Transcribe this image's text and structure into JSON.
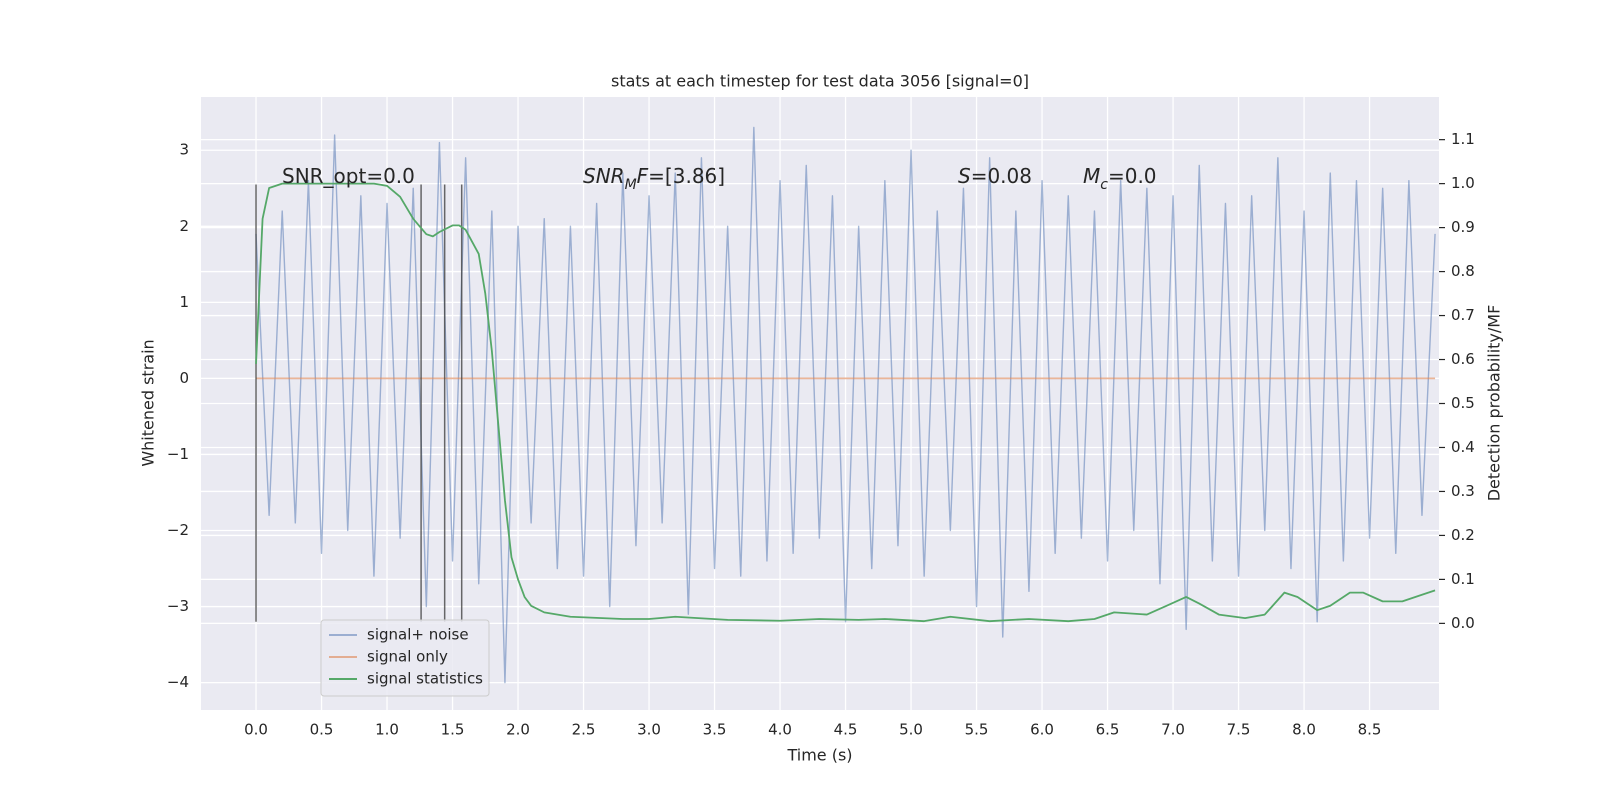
{
  "chart_data": {
    "type": "line",
    "title": "stats at each timestep for test data 3056 [signal=0]",
    "x_label": "Time (s)",
    "y_label": "Whitened strain",
    "y2_label": "Detection probability/MF",
    "xlim": [
      -0.42,
      9.03
    ],
    "ylim": [
      -4.36,
      3.7
    ],
    "y2lim": [
      -0.197,
      1.197
    ],
    "xticks": [
      {
        "value": 0,
        "label": "0.0"
      },
      {
        "value": 0.5,
        "label": "0.5"
      },
      {
        "value": 1,
        "label": "1.0"
      },
      {
        "value": 1.5,
        "label": "1.5"
      },
      {
        "value": 2,
        "label": "2.0"
      },
      {
        "value": 2.5,
        "label": "2.5"
      },
      {
        "value": 3,
        "label": "3.0"
      },
      {
        "value": 3.5,
        "label": "3.5"
      },
      {
        "value": 4,
        "label": "4.0"
      },
      {
        "value": 4.5,
        "label": "4.5"
      },
      {
        "value": 5,
        "label": "5.0"
      },
      {
        "value": 5.5,
        "label": "5.5"
      },
      {
        "value": 6,
        "label": "6.0"
      },
      {
        "value": 6.5,
        "label": "6.5"
      },
      {
        "value": 7,
        "label": "7.0"
      },
      {
        "value": 7.5,
        "label": "7.5"
      },
      {
        "value": 8,
        "label": "8.0"
      },
      {
        "value": 8.5,
        "label": "8.5"
      }
    ],
    "yticks": [
      {
        "value": -4,
        "label": "−4"
      },
      {
        "value": -3,
        "label": "−3"
      },
      {
        "value": -2,
        "label": "−2"
      },
      {
        "value": -1,
        "label": "−1"
      },
      0,
      1,
      2,
      3
    ],
    "y2ticks": [
      {
        "value": 0,
        "label": "0.0"
      },
      {
        "value": 0.1,
        "label": "0.1"
      },
      {
        "value": 0.2,
        "label": "0.2"
      },
      {
        "value": 0.3,
        "label": "0.3"
      },
      {
        "value": 0.4,
        "label": "0.4"
      },
      {
        "value": 0.5,
        "label": "0.5"
      },
      {
        "value": 0.6,
        "label": "0.6"
      },
      {
        "value": 0.7,
        "label": "0.7"
      },
      {
        "value": 0.8,
        "label": "0.8"
      },
      {
        "value": 0.9,
        "label": "0.9"
      },
      {
        "value": 1,
        "label": "1.0"
      },
      {
        "value": 1.1,
        "label": "1.1"
      }
    ],
    "grid": true,
    "legend": "lower left",
    "series": [
      {
        "name": "signal+ noise",
        "color": "#4c72b0",
        "opacity": 0.5,
        "x": [
          0,
          0.1,
          0.2,
          0.3,
          0.4,
          0.5,
          0.6,
          0.7,
          0.8,
          0.9,
          1,
          1.1,
          1.2,
          1.3,
          1.4,
          1.5,
          1.6,
          1.7,
          1.8,
          1.9,
          2,
          2.1,
          2.2,
          2.3,
          2.4,
          2.5,
          2.6,
          2.7,
          2.8,
          2.9,
          3,
          3.1,
          3.2,
          3.3,
          3.4,
          3.5,
          3.6,
          3.7,
          3.8,
          3.9,
          4,
          4.1,
          4.2,
          4.3,
          4.4,
          4.5,
          4.6,
          4.7,
          4.8,
          4.9,
          5,
          5.1,
          5.2,
          5.3,
          5.4,
          5.5,
          5.6,
          5.7,
          5.8,
          5.9,
          6,
          6.1,
          6.2,
          6.3,
          6.4,
          6.5,
          6.6,
          6.7,
          6.8,
          6.9,
          7,
          7.1,
          7.2,
          7.3,
          7.4,
          7.5,
          7.6,
          7.7,
          7.8,
          7.9,
          8,
          8.1,
          8.2,
          8.3,
          8.4,
          8.5,
          8.6,
          8.7,
          8.8,
          8.9,
          9
        ],
        "values": [
          1.9,
          -1.8,
          2.2,
          -1.9,
          2.6,
          -2.3,
          3.2,
          -2.0,
          2.4,
          -2.6,
          2.3,
          -2.1,
          2.5,
          -3.0,
          3.1,
          -2.4,
          2.9,
          -2.7,
          2.2,
          -4.0,
          2.0,
          -1.9,
          2.1,
          -2.5,
          2.0,
          -2.6,
          2.3,
          -3.0,
          2.7,
          -2.2,
          2.4,
          -1.9,
          2.7,
          -3.1,
          2.9,
          -2.5,
          2.0,
          -2.6,
          3.3,
          -2.4,
          2.6,
          -2.3,
          2.8,
          -2.1,
          2.4,
          -3.2,
          2.0,
          -2.5,
          2.6,
          -2.2,
          3.0,
          -2.6,
          2.2,
          -2.0,
          2.5,
          -3.0,
          2.9,
          -3.4,
          2.2,
          -2.8,
          2.6,
          -2.3,
          2.4,
          -2.1,
          2.2,
          -2.4,
          2.6,
          -2.0,
          2.5,
          -2.7,
          2.4,
          -3.3,
          2.8,
          -2.4,
          2.3,
          -2.6,
          2.4,
          -2.0,
          2.9,
          -2.5,
          2.2,
          -3.2,
          2.7,
          -2.4,
          2.6,
          -2.1,
          2.5,
          -2.3,
          2.6,
          -1.8,
          1.9
        ]
      },
      {
        "name": "signal only",
        "color": "#dd8452",
        "opacity": 0.6,
        "x": [
          0,
          9
        ],
        "values": [
          0,
          0
        ]
      },
      {
        "name": "signal statistics",
        "color": "#55a868",
        "opacity": 1,
        "axis": "y2",
        "x": [
          0,
          0.05,
          0.1,
          0.2,
          0.3,
          0.4,
          0.5,
          0.6,
          0.7,
          0.8,
          0.9,
          1.0,
          1.1,
          1.2,
          1.3,
          1.35,
          1.4,
          1.5,
          1.55,
          1.6,
          1.7,
          1.75,
          1.8,
          1.85,
          1.9,
          1.95,
          2.0,
          2.05,
          2.1,
          2.2,
          2.4,
          2.8,
          3.0,
          3.2,
          3.6,
          4.0,
          4.3,
          4.6,
          4.8,
          5.1,
          5.3,
          5.6,
          5.9,
          6.2,
          6.4,
          6.55,
          6.8,
          6.95,
          7.1,
          7.2,
          7.35,
          7.55,
          7.7,
          7.85,
          7.95,
          8.1,
          8.2,
          8.35,
          8.45,
          8.6,
          8.75,
          8.9,
          9.0
        ],
        "values": [
          0.59,
          0.92,
          0.99,
          1.0,
          1.0,
          1.0,
          1.0,
          1.0,
          1.0,
          1.0,
          1.0,
          0.995,
          0.97,
          0.92,
          0.885,
          0.88,
          0.89,
          0.905,
          0.905,
          0.895,
          0.84,
          0.75,
          0.62,
          0.45,
          0.28,
          0.15,
          0.1,
          0.06,
          0.04,
          0.025,
          0.015,
          0.01,
          0.01,
          0.015,
          0.008,
          0.006,
          0.01,
          0.008,
          0.01,
          0.005,
          0.015,
          0.005,
          0.01,
          0.005,
          0.01,
          0.025,
          0.02,
          0.04,
          0.06,
          0.045,
          0.02,
          0.012,
          0.02,
          0.07,
          0.06,
          0.03,
          0.04,
          0.07,
          0.07,
          0.05,
          0.05,
          0.065,
          0.075
        ]
      }
    ],
    "vlines": {
      "x": [
        0,
        1.26,
        1.44,
        1.57
      ],
      "ymin": -3.2,
      "ymax": 2.55,
      "color": "#444444"
    },
    "annotations": [
      {
        "parts": [
          {
            "text": "SNR_opt=0.0",
            "style": "normal"
          }
        ]
      },
      {
        "parts": [
          {
            "text": "SNR",
            "style": "italic"
          },
          {
            "text": "M",
            "style": "italic-sub"
          },
          {
            "text": "F",
            "style": "italic"
          },
          {
            "text": "=[3.86]",
            "style": "normal"
          }
        ]
      },
      {
        "parts": [
          {
            "text": "S",
            "style": "italic"
          },
          {
            "text": "=0.08",
            "style": "normal"
          }
        ]
      },
      {
        "parts": [
          {
            "text": "M",
            "style": "italic"
          },
          {
            "text": "c",
            "style": "italic-sub"
          },
          {
            "text": "=0.0",
            "style": "normal"
          }
        ]
      }
    ]
  }
}
